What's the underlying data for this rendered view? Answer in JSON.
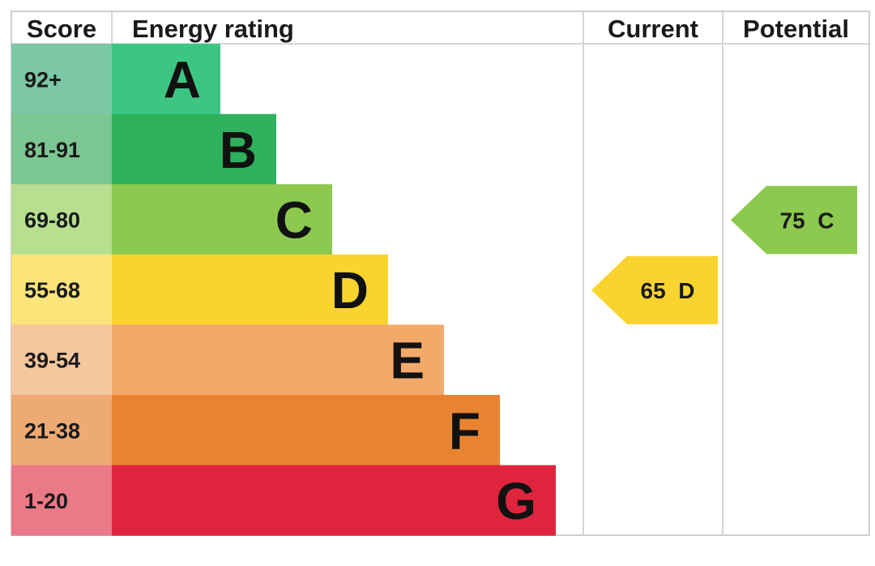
{
  "chart_data": {
    "type": "bar",
    "headers": {
      "score": "Score",
      "rating": "Energy rating",
      "current": "Current",
      "potential": "Potential"
    },
    "bands": [
      {
        "score": "92+",
        "letter": "A",
        "color": "#3dc682",
        "score_color": "#7bc7a6"
      },
      {
        "score": "81-91",
        "letter": "B",
        "color": "#2fb05c",
        "score_color": "#7cc692"
      },
      {
        "score": "69-80",
        "letter": "C",
        "color": "#8cc94e",
        "score_color": "#b7df8f"
      },
      {
        "score": "55-68",
        "letter": "D",
        "color": "#fad42e",
        "score_color": "#fbe47a"
      },
      {
        "score": "39-54",
        "letter": "E",
        "color": "#f2aa6b",
        "score_color": "#f6c69e"
      },
      {
        "score": "21-38",
        "letter": "F",
        "color": "#e88431",
        "score_color": "#eeaa73"
      },
      {
        "score": "1-20",
        "letter": "G",
        "color": "#df253d",
        "score_color": "#ea7a88"
      }
    ],
    "current": {
      "value": 65,
      "letter": "D",
      "color": "#fad42e"
    },
    "potential": {
      "value": 75,
      "letter": "C",
      "color": "#8cc94e"
    }
  }
}
